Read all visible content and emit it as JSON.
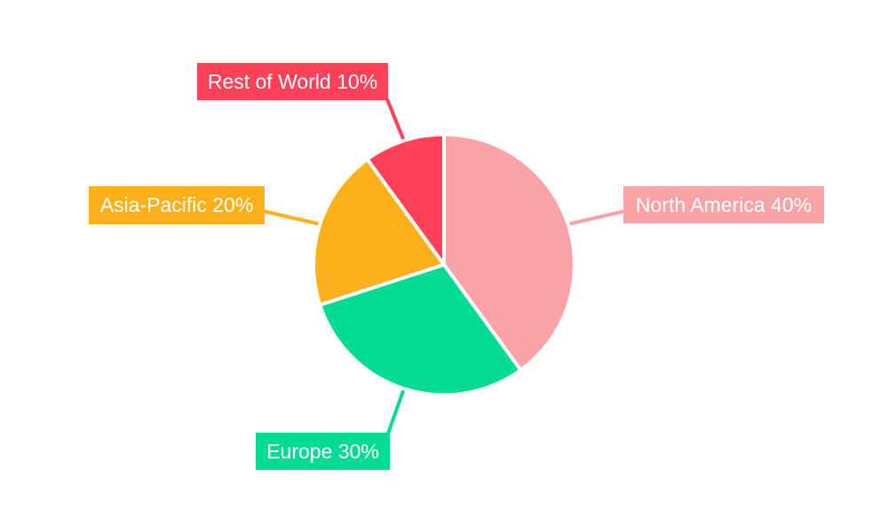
{
  "page": {
    "background": "#FFFFFF"
  },
  "chart_data": {
    "type": "pie",
    "title": "",
    "categories": [
      "North America",
      "Europe",
      "Asia-Pacific",
      "Rest of World"
    ],
    "values": [
      40,
      30,
      20,
      10
    ],
    "slices": [
      {
        "label": "North America",
        "value_pct": 40,
        "label_text": "North America 40%",
        "color": "#F9A3A6"
      },
      {
        "label": "Europe",
        "value_pct": 30,
        "label_text": "Europe 30%",
        "color": "#04DC93"
      },
      {
        "label": "Asia-Pacific",
        "value_pct": 20,
        "label_text": "Asia-Pacific 20%",
        "color": "#FCB01B"
      },
      {
        "label": "Rest of World",
        "value_pct": 10,
        "label_text": "Rest of World 10%",
        "color": "#FC4158"
      }
    ],
    "start_angle_deg": 0,
    "direction": "clockwise",
    "slice_gap_color": "#FFFFFF",
    "label_style": "colored-box-with-leader-line",
    "label_text_color": "#FFFFFF",
    "legend_position": "none",
    "background": "#FFFFFF"
  }
}
